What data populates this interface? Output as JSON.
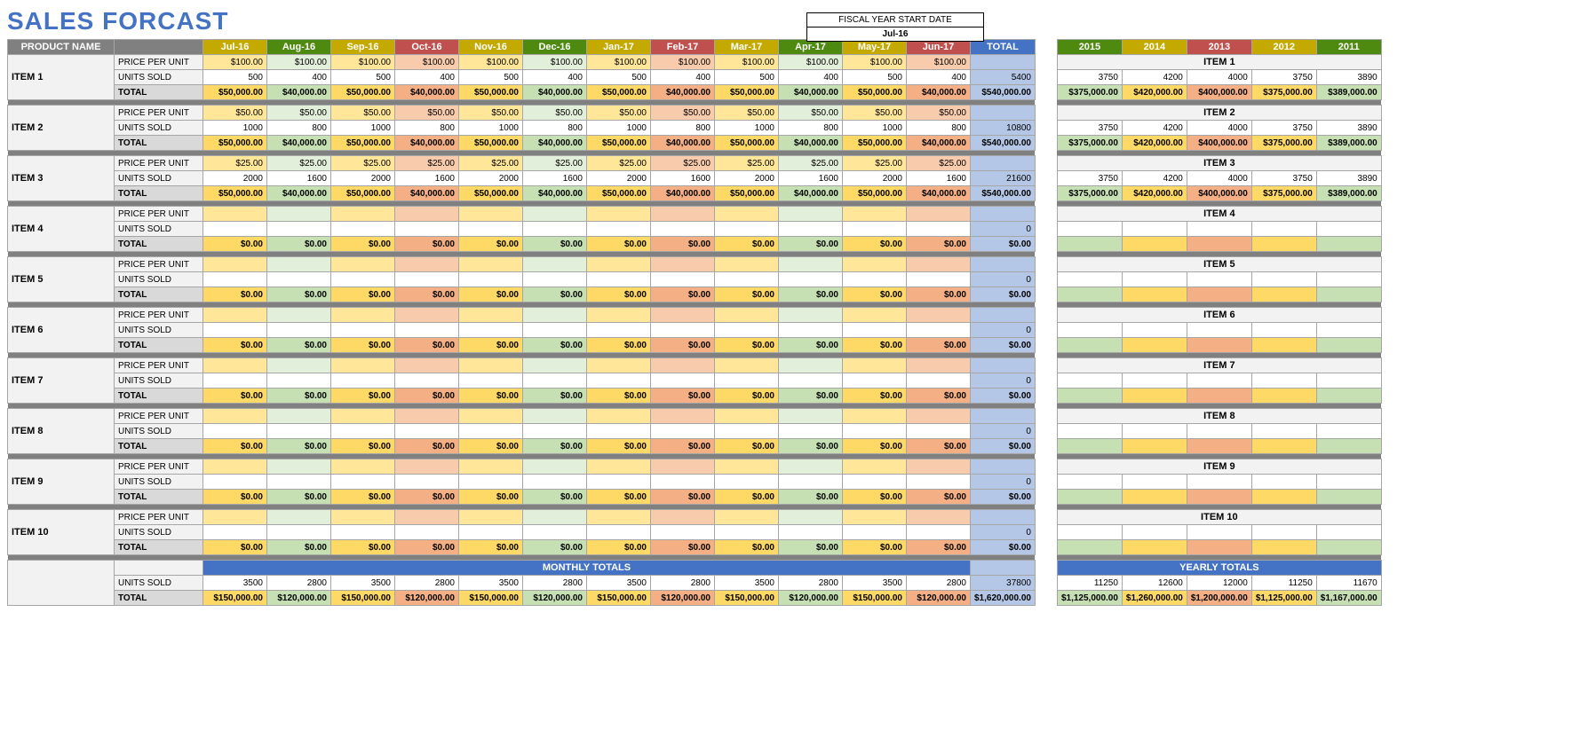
{
  "title": "SALES FORCAST",
  "fiscal_year": {
    "label": "FISCAL YEAR START DATE",
    "value": "Jul-16"
  },
  "month_colors": [
    "#c4a900",
    "#4f8a10",
    "#c4a900",
    "#c0504d",
    "#c4a900",
    "#4f8a10",
    "#c4a900",
    "#c0504d",
    "#c4a900",
    "#4f8a10",
    "#c4a900",
    "#c0504d"
  ],
  "month_bg_light": [
    "#ffe699",
    "#e2efda",
    "#ffe699",
    "#f8cbad",
    "#ffe699",
    "#e2efda",
    "#ffe699",
    "#f8cbad",
    "#ffe699",
    "#e2efda",
    "#ffe699",
    "#f8cbad"
  ],
  "month_bg_mid": [
    "#ffd966",
    "#c6e0b4",
    "#ffd966",
    "#f4b084",
    "#ffd966",
    "#c6e0b4",
    "#ffd966",
    "#f4b084",
    "#ffd966",
    "#c6e0b4",
    "#ffd966",
    "#f4b084"
  ],
  "year_colors": [
    "#4f8a10",
    "#c4a900",
    "#c0504d",
    "#c4a900",
    "#4f8a10"
  ],
  "year_bg_light": [
    "#e2efda",
    "#ffe699",
    "#f8cbad",
    "#ffe699",
    "#e2efda"
  ],
  "year_bg_mid": [
    "#c6e0b4",
    "#ffd966",
    "#f4b084",
    "#ffd966",
    "#c6e0b4"
  ],
  "labels": {
    "product_name": "PRODUCT NAME",
    "price": "PRICE PER UNIT",
    "units": "UNITS SOLD",
    "total": "TOTAL",
    "monthly_totals": "MONTHLY TOTALS",
    "yearly_totals": "YEARLY TOTALS"
  },
  "months": [
    "Jul-16",
    "Aug-16",
    "Sep-16",
    "Oct-16",
    "Nov-16",
    "Dec-16",
    "Jan-17",
    "Feb-17",
    "Mar-17",
    "Apr-17",
    "May-17",
    "Jun-17"
  ],
  "total_hdr": "TOTAL",
  "years": [
    "2015",
    "2014",
    "2013",
    "2012",
    "2011"
  ],
  "col_width_month": 72,
  "col_width_total": 72,
  "col_width_year": 72,
  "items": [
    {
      "name": "ITEM 1",
      "price": [
        "$100.00",
        "$100.00",
        "$100.00",
        "$100.00",
        "$100.00",
        "$100.00",
        "$100.00",
        "$100.00",
        "$100.00",
        "$100.00",
        "$100.00",
        "$100.00"
      ],
      "units": [
        "500",
        "400",
        "500",
        "400",
        "500",
        "400",
        "500",
        "400",
        "500",
        "400",
        "500",
        "400"
      ],
      "total": [
        "$50,000.00",
        "$40,000.00",
        "$50,000.00",
        "$40,000.00",
        "$50,000.00",
        "$40,000.00",
        "$50,000.00",
        "$40,000.00",
        "$50,000.00",
        "$40,000.00",
        "$50,000.00",
        "$40,000.00"
      ],
      "units_total": "5400",
      "grand": "$540,000.00",
      "yr_units": [
        "3750",
        "4200",
        "4000",
        "3750",
        "3890"
      ],
      "yr_total": [
        "$375,000.00",
        "$420,000.00",
        "$400,000.00",
        "$375,000.00",
        "$389,000.00"
      ]
    },
    {
      "name": "ITEM 2",
      "price": [
        "$50.00",
        "$50.00",
        "$50.00",
        "$50.00",
        "$50.00",
        "$50.00",
        "$50.00",
        "$50.00",
        "$50.00",
        "$50.00",
        "$50.00",
        "$50.00"
      ],
      "units": [
        "1000",
        "800",
        "1000",
        "800",
        "1000",
        "800",
        "1000",
        "800",
        "1000",
        "800",
        "1000",
        "800"
      ],
      "total": [
        "$50,000.00",
        "$40,000.00",
        "$50,000.00",
        "$40,000.00",
        "$50,000.00",
        "$40,000.00",
        "$50,000.00",
        "$40,000.00",
        "$50,000.00",
        "$40,000.00",
        "$50,000.00",
        "$40,000.00"
      ],
      "units_total": "10800",
      "grand": "$540,000.00",
      "yr_units": [
        "3750",
        "4200",
        "4000",
        "3750",
        "3890"
      ],
      "yr_total": [
        "$375,000.00",
        "$420,000.00",
        "$400,000.00",
        "$375,000.00",
        "$389,000.00"
      ]
    },
    {
      "name": "ITEM 3",
      "price": [
        "$25.00",
        "$25.00",
        "$25.00",
        "$25.00",
        "$25.00",
        "$25.00",
        "$25.00",
        "$25.00",
        "$25.00",
        "$25.00",
        "$25.00",
        "$25.00"
      ],
      "units": [
        "2000",
        "1600",
        "2000",
        "1600",
        "2000",
        "1600",
        "2000",
        "1600",
        "2000",
        "1600",
        "2000",
        "1600"
      ],
      "total": [
        "$50,000.00",
        "$40,000.00",
        "$50,000.00",
        "$40,000.00",
        "$50,000.00",
        "$40,000.00",
        "$50,000.00",
        "$40,000.00",
        "$50,000.00",
        "$40,000.00",
        "$50,000.00",
        "$40,000.00"
      ],
      "units_total": "21600",
      "grand": "$540,000.00",
      "yr_units": [
        "3750",
        "4200",
        "4000",
        "3750",
        "3890"
      ],
      "yr_total": [
        "$375,000.00",
        "$420,000.00",
        "$400,000.00",
        "$375,000.00",
        "$389,000.00"
      ]
    },
    {
      "name": "ITEM 4",
      "price": [
        "",
        "",
        "",
        "",
        "",
        "",
        "",
        "",
        "",
        "",
        "",
        ""
      ],
      "units": [
        "",
        "",
        "",
        "",
        "",
        "",
        "",
        "",
        "",
        "",
        "",
        ""
      ],
      "total": [
        "$0.00",
        "$0.00",
        "$0.00",
        "$0.00",
        "$0.00",
        "$0.00",
        "$0.00",
        "$0.00",
        "$0.00",
        "$0.00",
        "$0.00",
        "$0.00"
      ],
      "units_total": "0",
      "grand": "$0.00",
      "yr_units": [
        "",
        "",
        "",
        "",
        ""
      ],
      "yr_total": [
        "",
        "",
        "",
        "",
        ""
      ]
    },
    {
      "name": "ITEM 5",
      "price": [
        "",
        "",
        "",
        "",
        "",
        "",
        "",
        "",
        "",
        "",
        "",
        ""
      ],
      "units": [
        "",
        "",
        "",
        "",
        "",
        "",
        "",
        "",
        "",
        "",
        "",
        ""
      ],
      "total": [
        "$0.00",
        "$0.00",
        "$0.00",
        "$0.00",
        "$0.00",
        "$0.00",
        "$0.00",
        "$0.00",
        "$0.00",
        "$0.00",
        "$0.00",
        "$0.00"
      ],
      "units_total": "0",
      "grand": "$0.00",
      "yr_units": [
        "",
        "",
        "",
        "",
        ""
      ],
      "yr_total": [
        "",
        "",
        "",
        "",
        ""
      ]
    },
    {
      "name": "ITEM 6",
      "price": [
        "",
        "",
        "",
        "",
        "",
        "",
        "",
        "",
        "",
        "",
        "",
        ""
      ],
      "units": [
        "",
        "",
        "",
        "",
        "",
        "",
        "",
        "",
        "",
        "",
        "",
        ""
      ],
      "total": [
        "$0.00",
        "$0.00",
        "$0.00",
        "$0.00",
        "$0.00",
        "$0.00",
        "$0.00",
        "$0.00",
        "$0.00",
        "$0.00",
        "$0.00",
        "$0.00"
      ],
      "units_total": "0",
      "grand": "$0.00",
      "yr_units": [
        "",
        "",
        "",
        "",
        ""
      ],
      "yr_total": [
        "",
        "",
        "",
        "",
        ""
      ]
    },
    {
      "name": "ITEM 7",
      "price": [
        "",
        "",
        "",
        "",
        "",
        "",
        "",
        "",
        "",
        "",
        "",
        ""
      ],
      "units": [
        "",
        "",
        "",
        "",
        "",
        "",
        "",
        "",
        "",
        "",
        "",
        ""
      ],
      "total": [
        "$0.00",
        "$0.00",
        "$0.00",
        "$0.00",
        "$0.00",
        "$0.00",
        "$0.00",
        "$0.00",
        "$0.00",
        "$0.00",
        "$0.00",
        "$0.00"
      ],
      "units_total": "0",
      "grand": "$0.00",
      "yr_units": [
        "",
        "",
        "",
        "",
        ""
      ],
      "yr_total": [
        "",
        "",
        "",
        "",
        ""
      ]
    },
    {
      "name": "ITEM 8",
      "price": [
        "",
        "",
        "",
        "",
        "",
        "",
        "",
        "",
        "",
        "",
        "",
        ""
      ],
      "units": [
        "",
        "",
        "",
        "",
        "",
        "",
        "",
        "",
        "",
        "",
        "",
        ""
      ],
      "total": [
        "$0.00",
        "$0.00",
        "$0.00",
        "$0.00",
        "$0.00",
        "$0.00",
        "$0.00",
        "$0.00",
        "$0.00",
        "$0.00",
        "$0.00",
        "$0.00"
      ],
      "units_total": "0",
      "grand": "$0.00",
      "yr_units": [
        "",
        "",
        "",
        "",
        ""
      ],
      "yr_total": [
        "",
        "",
        "",
        "",
        ""
      ]
    },
    {
      "name": "ITEM 9",
      "price": [
        "",
        "",
        "",
        "",
        "",
        "",
        "",
        "",
        "",
        "",
        "",
        ""
      ],
      "units": [
        "",
        "",
        "",
        "",
        "",
        "",
        "",
        "",
        "",
        "",
        "",
        ""
      ],
      "total": [
        "$0.00",
        "$0.00",
        "$0.00",
        "$0.00",
        "$0.00",
        "$0.00",
        "$0.00",
        "$0.00",
        "$0.00",
        "$0.00",
        "$0.00",
        "$0.00"
      ],
      "units_total": "0",
      "grand": "$0.00",
      "yr_units": [
        "",
        "",
        "",
        "",
        ""
      ],
      "yr_total": [
        "",
        "",
        "",
        "",
        ""
      ]
    },
    {
      "name": "ITEM 10",
      "price": [
        "",
        "",
        "",
        "",
        "",
        "",
        "",
        "",
        "",
        "",
        "",
        ""
      ],
      "units": [
        "",
        "",
        "",
        "",
        "",
        "",
        "",
        "",
        "",
        "",
        "",
        ""
      ],
      "total": [
        "$0.00",
        "$0.00",
        "$0.00",
        "$0.00",
        "$0.00",
        "$0.00",
        "$0.00",
        "$0.00",
        "$0.00",
        "$0.00",
        "$0.00",
        "$0.00"
      ],
      "units_total": "0",
      "grand": "$0.00",
      "yr_units": [
        "",
        "",
        "",
        "",
        ""
      ],
      "yr_total": [
        "",
        "",
        "",
        "",
        ""
      ]
    }
  ],
  "monthly_totals": {
    "units": [
      "3500",
      "2800",
      "3500",
      "2800",
      "3500",
      "2800",
      "3500",
      "2800",
      "3500",
      "2800",
      "3500",
      "2800"
    ],
    "units_total": "37800",
    "total": [
      "$150,000.00",
      "$120,000.00",
      "$150,000.00",
      "$120,000.00",
      "$150,000.00",
      "$120,000.00",
      "$150,000.00",
      "$120,000.00",
      "$150,000.00",
      "$120,000.00",
      "$150,000.00",
      "$120,000.00"
    ],
    "grand": "$1,620,000.00"
  },
  "yearly_totals": {
    "units": [
      "11250",
      "12600",
      "12000",
      "11250",
      "11670"
    ],
    "total": [
      "$1,125,000.00",
      "$1,260,000.00",
      "$1,200,000.00",
      "$1,125,000.00",
      "$1,167,000.00"
    ]
  }
}
